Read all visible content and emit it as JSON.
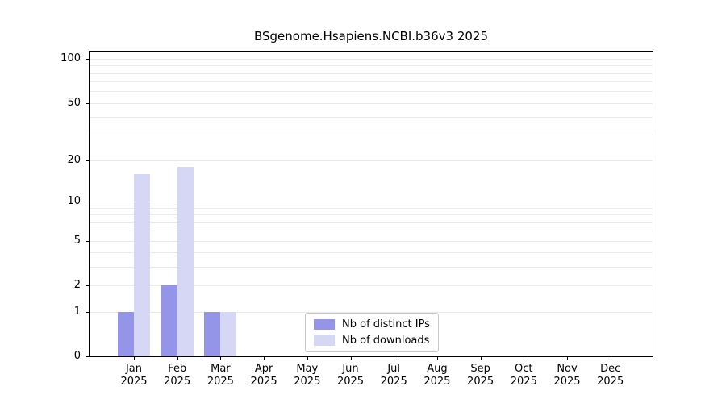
{
  "title": "BSgenome.Hsapiens.NCBI.b36v3 2025",
  "legend": {
    "position": "bottom-center",
    "items": [
      {
        "label": "Nb of distinct IPs",
        "color": "#9494e8"
      },
      {
        "label": "Nb of downloads",
        "color": "#d6d6f5"
      }
    ]
  },
  "chart_data": {
    "type": "bar",
    "title": "BSgenome.Hsapiens.NCBI.b36v3 2025",
    "categories": [
      "Jan",
      "Feb",
      "Mar",
      "Apr",
      "May",
      "Jun",
      "Jul",
      "Aug",
      "Sep",
      "Oct",
      "Nov",
      "Dec"
    ],
    "year": "2025",
    "series": [
      {
        "name": "Nb of distinct IPs",
        "color": "#9494e8",
        "values": [
          1,
          2,
          1,
          0,
          0,
          0,
          0,
          0,
          0,
          0,
          0,
          0
        ]
      },
      {
        "name": "Nb of downloads",
        "color": "#d6d6f5",
        "values": [
          16,
          18,
          1,
          0,
          0,
          0,
          0,
          0,
          0,
          0,
          0,
          0
        ]
      }
    ],
    "xlabel": "",
    "ylabel": "",
    "y_ticks": [
      100,
      50,
      20,
      10,
      5,
      2,
      1,
      0
    ],
    "y_scale": "log1p",
    "y_top": 112,
    "grid": "horizontal",
    "grid_values": [
      1,
      2,
      3,
      4,
      5,
      6,
      7,
      8,
      9,
      10,
      20,
      30,
      40,
      50,
      60,
      70,
      80,
      90,
      100
    ]
  }
}
